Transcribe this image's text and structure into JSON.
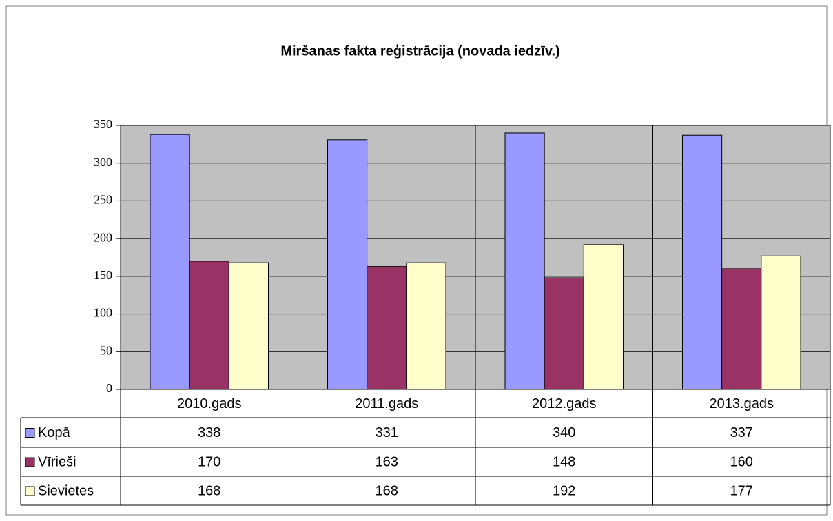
{
  "chart_data": {
    "type": "bar",
    "title": "Miršanas fakta reģistrācija (novada iedzīv.)",
    "categories": [
      "2010.gads",
      "2011.gads",
      "2012.gads",
      "2013.gads"
    ],
    "series": [
      {
        "name": "Kopā",
        "color": "#9999ff",
        "values": [
          338,
          331,
          340,
          337
        ]
      },
      {
        "name": "Vīrieši",
        "color": "#993366",
        "values": [
          170,
          163,
          148,
          160
        ]
      },
      {
        "name": "Sievietes",
        "color": "#ffffcc",
        "values": [
          168,
          168,
          192,
          177
        ]
      }
    ],
    "ylim": [
      0,
      350
    ],
    "yticks": [
      0,
      50,
      100,
      150,
      200,
      250,
      300,
      350
    ],
    "grid": true
  }
}
